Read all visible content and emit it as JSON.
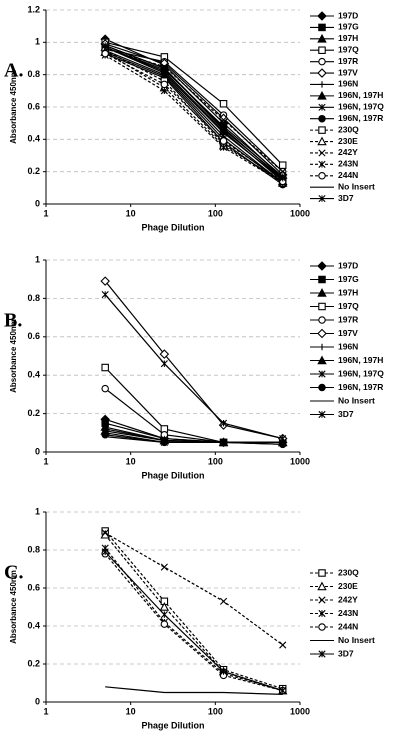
{
  "chart_data": [
    {
      "type": "line",
      "label": "A.",
      "xlabel": "Phage Dilution",
      "ylabel": "Absorbance 450nm",
      "xscale": "log",
      "grid": true,
      "legend": "right",
      "x": [
        5,
        25,
        125,
        625
      ],
      "xlim": [
        1,
        1000
      ],
      "xticks": [
        1,
        10,
        100,
        1000
      ],
      "ylim": [
        0,
        1.2
      ],
      "yticks": [
        0,
        0.2,
        0.4,
        0.6,
        0.8,
        1,
        1.2
      ],
      "series": [
        {
          "name": "197D",
          "color": "#000",
          "style": "solid",
          "marker": "diamond",
          "values": [
            1.02,
            0.86,
            0.5,
            0.16
          ]
        },
        {
          "name": "197G",
          "color": "#000",
          "style": "solid",
          "marker": "square",
          "values": [
            0.98,
            0.84,
            0.47,
            0.15
          ]
        },
        {
          "name": "197H",
          "color": "#000",
          "style": "solid",
          "marker": "triangle",
          "values": [
            0.97,
            0.82,
            0.45,
            0.14
          ]
        },
        {
          "name": "197Q",
          "color": "#000",
          "style": "solid",
          "marker": "square-open",
          "values": [
            1.0,
            0.91,
            0.62,
            0.24
          ]
        },
        {
          "name": "197R",
          "color": "#000",
          "style": "solid",
          "marker": "circle-open",
          "values": [
            0.96,
            0.88,
            0.55,
            0.2
          ]
        },
        {
          "name": "197V",
          "color": "#000",
          "style": "solid",
          "marker": "diamond-open",
          "values": [
            0.99,
            0.87,
            0.53,
            0.18
          ]
        },
        {
          "name": "196N",
          "color": "#000",
          "style": "solid",
          "marker": "plus",
          "values": [
            0.95,
            0.8,
            0.42,
            0.13
          ]
        },
        {
          "name": "196N, 197H",
          "color": "#000",
          "style": "solid",
          "marker": "triangle",
          "values": [
            0.94,
            0.79,
            0.4,
            0.13
          ]
        },
        {
          "name": "196N, 197Q",
          "color": "#000",
          "style": "solid",
          "marker": "star",
          "values": [
            0.97,
            0.83,
            0.48,
            0.17
          ]
        },
        {
          "name": "196N, 197R",
          "color": "#000",
          "style": "solid",
          "marker": "circle",
          "values": [
            0.93,
            0.78,
            0.38,
            0.12
          ]
        },
        {
          "name": "230Q",
          "color": "#000",
          "style": "dashed",
          "marker": "square-open",
          "values": [
            0.95,
            0.76,
            0.37,
            0.13
          ]
        },
        {
          "name": "230E",
          "color": "#000",
          "style": "dashed",
          "marker": "triangle-open",
          "values": [
            0.94,
            0.72,
            0.36,
            0.14
          ]
        },
        {
          "name": "242Y",
          "color": "#000",
          "style": "dashed",
          "marker": "x",
          "values": [
            0.96,
            0.85,
            0.52,
            0.2
          ]
        },
        {
          "name": "243N",
          "color": "#000",
          "style": "dashed",
          "marker": "star",
          "values": [
            0.92,
            0.7,
            0.35,
            0.13
          ]
        },
        {
          "name": "244N",
          "color": "#000",
          "style": "dashed",
          "marker": "circle-open",
          "values": [
            0.93,
            0.74,
            0.39,
            0.14
          ]
        },
        {
          "name": "No Insert",
          "color": "#000",
          "style": "solid",
          "marker": "none",
          "values": [
            0.97,
            0.81,
            0.44,
            0.15
          ]
        },
        {
          "name": "3D7",
          "color": "#000",
          "style": "solid",
          "marker": "star",
          "values": [
            0.98,
            0.84,
            0.46,
            0.16
          ]
        }
      ]
    },
    {
      "type": "line",
      "label": "B.",
      "xlabel": "Phage Dilution",
      "ylabel": "Absorbance 450nm",
      "xscale": "log",
      "grid": true,
      "legend": "right",
      "x": [
        5,
        25,
        125,
        625
      ],
      "xlim": [
        1,
        1000
      ],
      "xticks": [
        1,
        10,
        100,
        1000
      ],
      "ylim": [
        0,
        1
      ],
      "yticks": [
        0,
        0.2,
        0.4,
        0.6,
        0.8,
        1
      ],
      "series": [
        {
          "name": "197D",
          "color": "#000",
          "style": "solid",
          "marker": "diamond",
          "values": [
            0.17,
            0.07,
            0.05,
            0.05
          ]
        },
        {
          "name": "197G",
          "color": "#000",
          "style": "solid",
          "marker": "square",
          "values": [
            0.15,
            0.07,
            0.05,
            0.05
          ]
        },
        {
          "name": "197H",
          "color": "#000",
          "style": "solid",
          "marker": "triangle",
          "values": [
            0.13,
            0.06,
            0.05,
            0.05
          ]
        },
        {
          "name": "197Q",
          "color": "#000",
          "style": "solid",
          "marker": "square-open",
          "values": [
            0.44,
            0.12,
            0.05,
            0.05
          ]
        },
        {
          "name": "197R",
          "color": "#000",
          "style": "solid",
          "marker": "circle-open",
          "values": [
            0.33,
            0.09,
            0.05,
            0.05
          ]
        },
        {
          "name": "197V",
          "color": "#000",
          "style": "solid",
          "marker": "diamond-open",
          "values": [
            0.89,
            0.51,
            0.14,
            0.07
          ]
        },
        {
          "name": "196N",
          "color": "#000",
          "style": "solid",
          "marker": "plus",
          "values": [
            0.12,
            0.06,
            0.05,
            0.05
          ]
        },
        {
          "name": "196N, 197H",
          "color": "#000",
          "style": "solid",
          "marker": "triangle",
          "values": [
            0.11,
            0.06,
            0.05,
            0.05
          ]
        },
        {
          "name": "196N, 197Q",
          "color": "#000",
          "style": "solid",
          "marker": "star",
          "values": [
            0.1,
            0.05,
            0.05,
            0.05
          ]
        },
        {
          "name": "196N, 197R",
          "color": "#000",
          "style": "solid",
          "marker": "circle",
          "values": [
            0.09,
            0.05,
            0.05,
            0.04
          ]
        },
        {
          "name": "No Insert",
          "color": "#000",
          "style": "solid",
          "marker": "none",
          "values": [
            0.08,
            0.05,
            0.05,
            0.04
          ]
        },
        {
          "name": "3D7",
          "color": "#000",
          "style": "solid",
          "marker": "star",
          "values": [
            0.82,
            0.46,
            0.15,
            0.07
          ]
        }
      ]
    },
    {
      "type": "line",
      "label": "C.",
      "xlabel": "Phage Dilution",
      "ylabel": "Absorbance 450nm",
      "xscale": "log",
      "grid": true,
      "legend": "right",
      "x": [
        5,
        25,
        125,
        625
      ],
      "xlim": [
        1,
        1000
      ],
      "xticks": [
        1,
        10,
        100,
        1000
      ],
      "ylim": [
        0,
        1
      ],
      "yticks": [
        0,
        0.2,
        0.4,
        0.6,
        0.8,
        1
      ],
      "series": [
        {
          "name": "230Q",
          "color": "#000",
          "style": "dashed",
          "marker": "square-open",
          "values": [
            0.9,
            0.53,
            0.17,
            0.07
          ]
        },
        {
          "name": "230E",
          "color": "#000",
          "style": "dashed",
          "marker": "triangle-open",
          "values": [
            0.88,
            0.5,
            0.16,
            0.06
          ]
        },
        {
          "name": "242Y",
          "color": "#000",
          "style": "dashed",
          "marker": "x",
          "values": [
            0.89,
            0.71,
            0.53,
            0.3
          ]
        },
        {
          "name": "243N",
          "color": "#000",
          "style": "dashed",
          "marker": "star",
          "values": [
            0.81,
            0.42,
            0.15,
            0.06
          ]
        },
        {
          "name": "244N",
          "color": "#000",
          "style": "dashed",
          "marker": "circle-open",
          "values": [
            0.78,
            0.41,
            0.14,
            0.06
          ]
        },
        {
          "name": "No Insert",
          "color": "#000",
          "style": "solid",
          "marker": "none",
          "values": [
            0.08,
            0.05,
            0.05,
            0.04
          ]
        },
        {
          "name": "3D7",
          "color": "#000",
          "style": "solid",
          "marker": "star",
          "values": [
            0.79,
            0.46,
            0.16,
            0.06
          ]
        }
      ]
    }
  ]
}
